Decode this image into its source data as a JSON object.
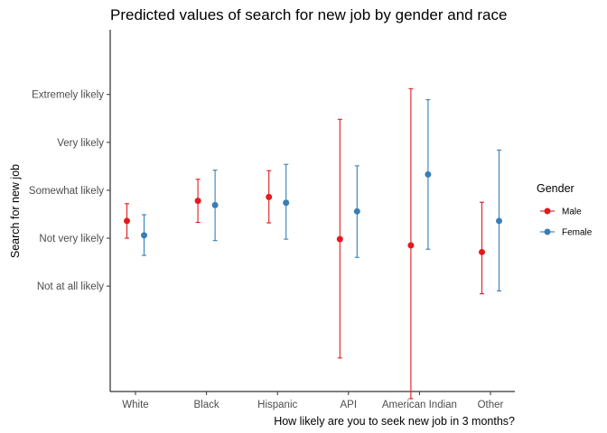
{
  "chart_data": {
    "type": "scatter",
    "title": "Predicted values of search for new job by gender and race",
    "xlabel": "How likely are you to seek new job in 3 months?",
    "ylabel": "Search for new job",
    "categories": [
      "White",
      "Black",
      "Hispanic",
      "API",
      "American Indian",
      "Other"
    ],
    "y_ticks": [
      {
        "value": 1,
        "label": "Not at all likely"
      },
      {
        "value": 2,
        "label": "Not very likely"
      },
      {
        "value": 3,
        "label": "Somewhat likely"
      },
      {
        "value": 4,
        "label": "Very likely"
      },
      {
        "value": 5,
        "label": "Extremely likely"
      }
    ],
    "ylim": [
      -1.2,
      6.35
    ],
    "grid": false,
    "legend": {
      "title": "Gender",
      "position": "right"
    },
    "series": [
      {
        "name": "Male",
        "color": "#e41a1c",
        "values": [
          2.36,
          2.78,
          2.86,
          1.98,
          1.85,
          1.71
        ],
        "lower": [
          2.0,
          2.33,
          2.32,
          -0.5,
          -1.35,
          0.84
        ],
        "upper": [
          2.72,
          3.23,
          3.41,
          4.48,
          5.12,
          2.75
        ]
      },
      {
        "name": "Female",
        "color": "#377eb8",
        "values": [
          2.06,
          2.69,
          2.74,
          2.56,
          3.33,
          2.36
        ],
        "lower": [
          1.64,
          1.95,
          1.98,
          1.6,
          1.77,
          0.9
        ],
        "upper": [
          2.49,
          3.42,
          3.54,
          3.51,
          4.89,
          3.84
        ]
      }
    ]
  }
}
